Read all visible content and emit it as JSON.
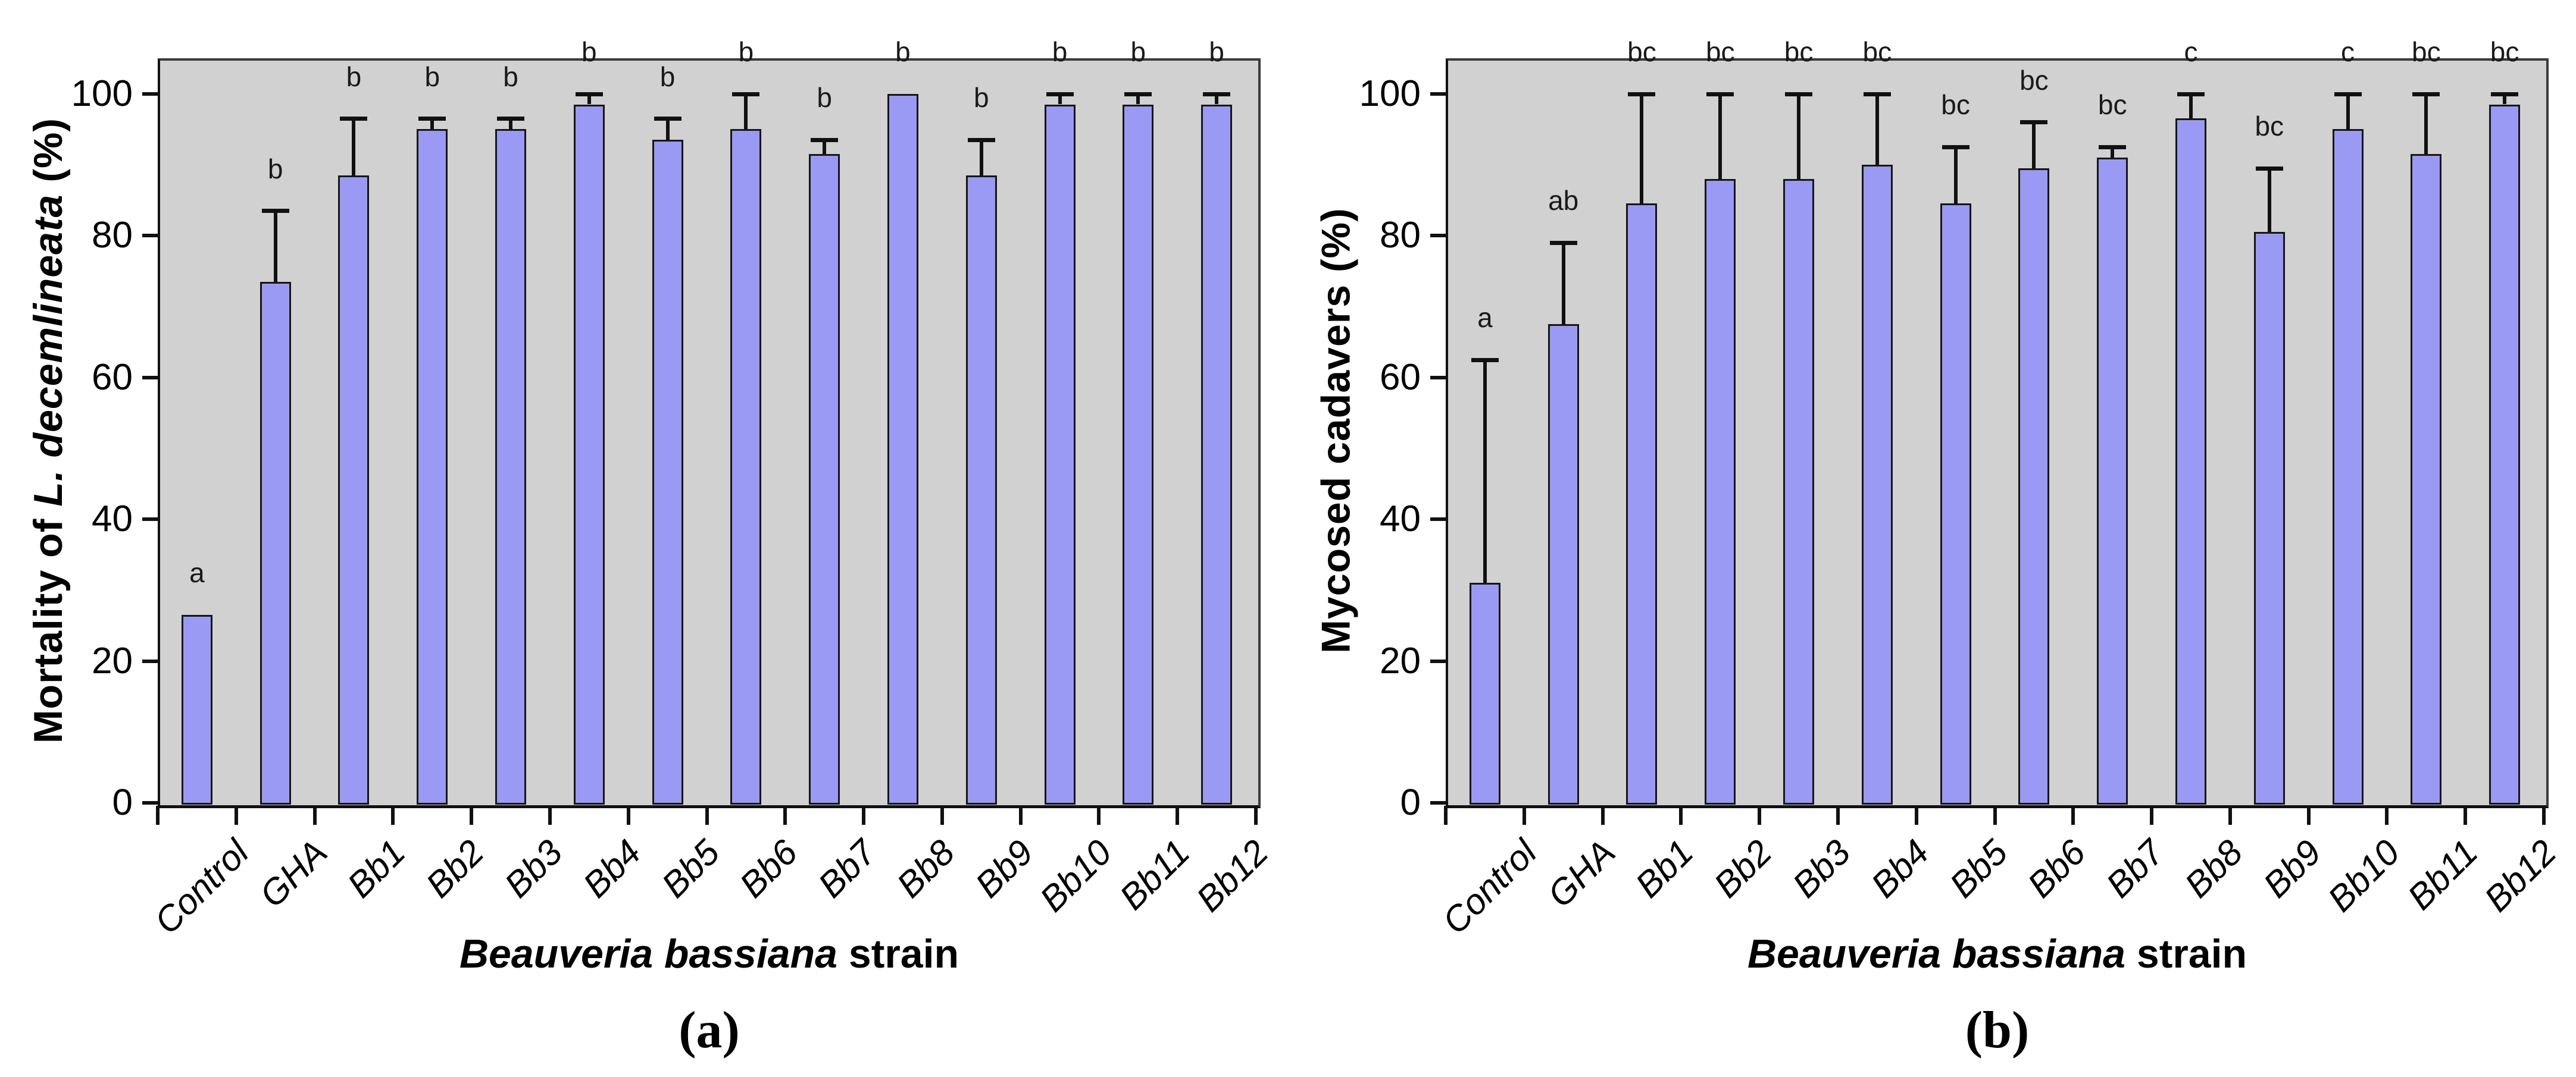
{
  "figure": {
    "background": "#ffffff",
    "plot_background": "#d1d1d1",
    "bar_fill": "#9a9af4",
    "bar_border": "#161616",
    "error_color": "#111111",
    "axis_color": "#111111",
    "captions": [
      "(a)",
      "(b)"
    ]
  },
  "chart_data": [
    {
      "type": "bar",
      "panel": "a",
      "ylabel": "Mortality of L. decemlineata (%)",
      "ylabel_parts": {
        "prefix": "Mortality of ",
        "italic": "L. decemlineata",
        "suffix": " (%)"
      },
      "xlabel": "Beauveria bassiana strain",
      "xlabel_parts": {
        "italic": "Beauveria bassiana",
        "regular": " strain"
      },
      "caption": "(a)",
      "categories": [
        "Control",
        "GHA",
        "Bb1",
        "Bb2",
        "Bb3",
        "Bb4",
        "Bb5",
        "Bb6",
        "Bb7",
        "Bb8",
        "Bb9",
        "Bb10",
        "Bb11",
        "Bb12"
      ],
      "values": [
        26.5,
        73.5,
        88.5,
        95,
        95,
        98.5,
        93.5,
        95,
        91.5,
        100,
        88.5,
        98.5,
        98.5,
        98.5
      ],
      "error_top": [
        null,
        83.5,
        96.5,
        96.5,
        96.5,
        100,
        96.5,
        100,
        93.5,
        null,
        93.5,
        100,
        100,
        100
      ],
      "sig_letters": [
        "a",
        "b",
        "b",
        "b",
        "b",
        "b",
        "b",
        "b",
        "b",
        "b",
        "b",
        "b",
        "b",
        "b"
      ],
      "ylim": [
        0,
        105
      ],
      "yticks": [
        0,
        20,
        40,
        60,
        80,
        100
      ],
      "grid": false,
      "legend": null
    },
    {
      "type": "bar",
      "panel": "b",
      "ylabel": "Mycosed cadavers (%)",
      "ylabel_parts": {
        "prefix": "Mycosed cadavers (%)",
        "italic": "",
        "suffix": ""
      },
      "xlabel": "Beauveria bassiana strain",
      "xlabel_parts": {
        "italic": "Beauveria bassiana",
        "regular": " strain"
      },
      "caption": "(b)",
      "categories": [
        "Control",
        "GHA",
        "Bb1",
        "Bb2",
        "Bb3",
        "Bb4",
        "Bb5",
        "Bb6",
        "Bb7",
        "Bb8",
        "Bb9",
        "Bb10",
        "Bb11",
        "Bb12"
      ],
      "values": [
        31,
        67.5,
        84.5,
        88,
        88,
        90,
        84.5,
        89.5,
        91,
        96.5,
        80.5,
        95,
        91.5,
        98.5
      ],
      "error_top": [
        62.5,
        79,
        100,
        100,
        100,
        100,
        92.5,
        96,
        92.5,
        100,
        89.5,
        100,
        100,
        100
      ],
      "sig_letters": [
        "a",
        "ab",
        "bc",
        "bc",
        "bc",
        "bc",
        "bc",
        "bc",
        "bc",
        "c",
        "bc",
        "c",
        "bc",
        "bc"
      ],
      "ylim": [
        0,
        105
      ],
      "yticks": [
        0,
        20,
        40,
        60,
        80,
        100
      ],
      "grid": false,
      "legend": null
    }
  ]
}
